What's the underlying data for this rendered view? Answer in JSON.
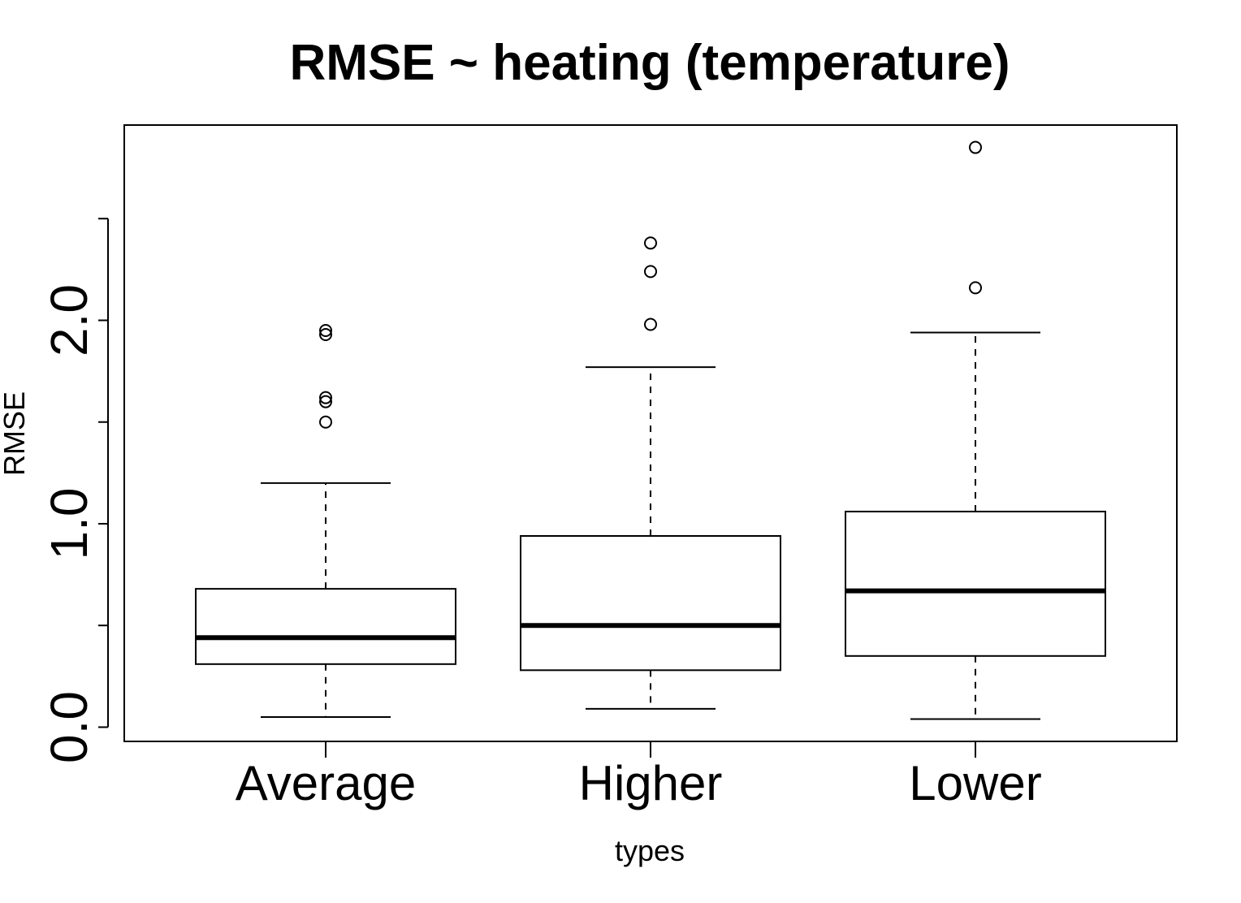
{
  "chart_data": {
    "type": "boxplot",
    "title": "RMSE ~ heating (temperature)",
    "xlabel": "types",
    "ylabel": "RMSE",
    "ylim": [
      -0.07,
      2.96
    ],
    "y_ticks": [
      0.0,
      0.5,
      1.0,
      1.5,
      2.0,
      2.5
    ],
    "y_tick_labels": [
      "0.0",
      "",
      "1.0",
      "",
      "2.0",
      ""
    ],
    "categories": [
      "Average",
      "Higher",
      "Lower"
    ],
    "boxes": [
      {
        "name": "Average",
        "whisker_low": 0.05,
        "q1": 0.31,
        "median": 0.44,
        "q3": 0.68,
        "whisker_high": 1.2,
        "outliers": [
          1.5,
          1.6,
          1.62,
          1.93,
          1.95
        ]
      },
      {
        "name": "Higher",
        "whisker_low": 0.09,
        "q1": 0.28,
        "median": 0.5,
        "q3": 0.94,
        "whisker_high": 1.77,
        "outliers": [
          1.98,
          2.24,
          2.38
        ]
      },
      {
        "name": "Lower",
        "whisker_low": 0.04,
        "q1": 0.35,
        "median": 0.67,
        "q3": 1.06,
        "whisker_high": 1.94,
        "outliers": [
          2.16,
          2.85
        ]
      }
    ],
    "grid": false,
    "colors": {
      "box_fill": "#ffffff",
      "stroke": "#000000"
    }
  }
}
